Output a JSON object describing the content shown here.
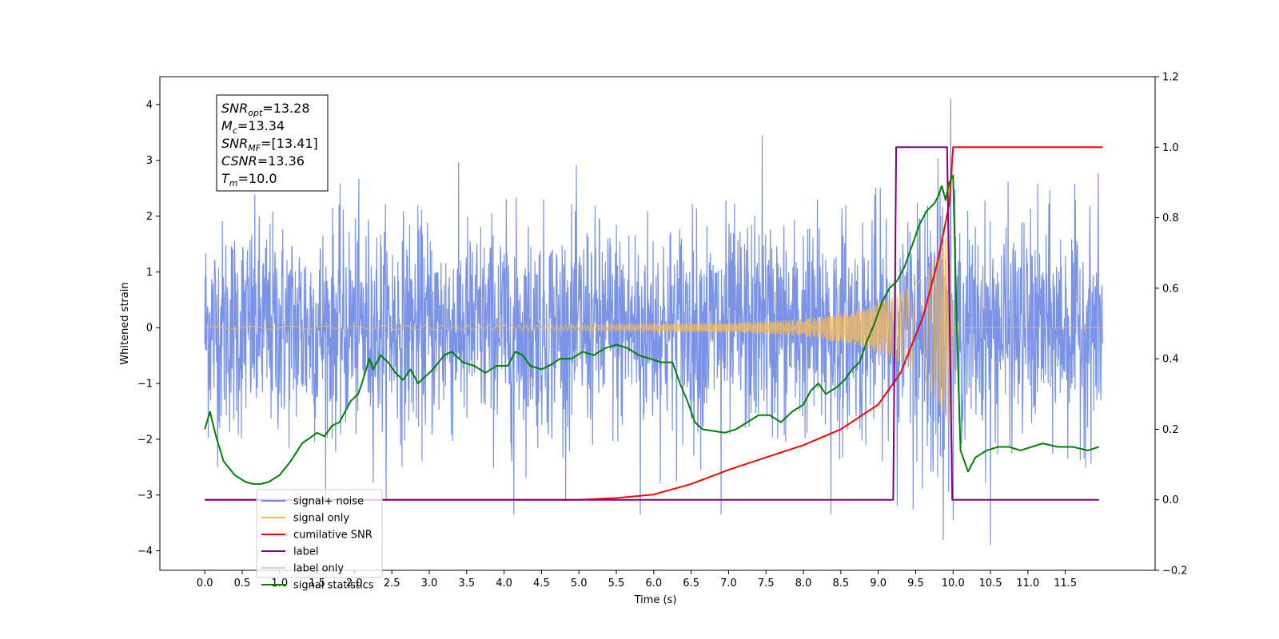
{
  "chart_data": {
    "type": "line",
    "xlabel": "Time (s)",
    "ylabel": "Whitened strain",
    "xlim": [
      -0.6,
      12.7
    ],
    "ylim": [
      -4.35,
      4.5
    ],
    "y2lim": [
      -0.2,
      1.2
    ],
    "x_ticks": [
      "0.0",
      "0.5",
      "1.0",
      "1.5",
      "2.0",
      "2.5",
      "3.0",
      "3.5",
      "4.0",
      "4.5",
      "5.0",
      "5.5",
      "6.0",
      "6.5",
      "7.0",
      "7.5",
      "8.0",
      "8.5",
      "9.0",
      "9.5",
      "10.0",
      "10.5",
      "11.0",
      "11.5"
    ],
    "y_ticks": [
      "4",
      "3",
      "2",
      "1",
      "0",
      "−1",
      "−2",
      "−3",
      "−4"
    ],
    "y2_ticks": [
      "1.2",
      "1.0",
      "0.8",
      "0.6",
      "0.4",
      "0.2",
      "0.0",
      "−0.2"
    ],
    "info_box": [
      {
        "label": "SNR",
        "sub": "opt",
        "value": "=13.28"
      },
      {
        "label": "M",
        "sub": "c",
        "value": "=13.34"
      },
      {
        "label": "SNR",
        "sub": "MF",
        "value": "=[13.41]"
      },
      {
        "label": "CSNR",
        "sub": "",
        "value": "=13.36"
      },
      {
        "label": "T",
        "sub": "m",
        "value": "=10.0"
      }
    ],
    "legend": [
      {
        "name": "signal+ noise",
        "color": "#6b87e3"
      },
      {
        "name": "signal only",
        "color": "#f5b95a"
      },
      {
        "name": "cumilative SNR",
        "color": "#ff0000"
      },
      {
        "name": "label",
        "color": "#800080"
      },
      {
        "name": "label only",
        "color": "#d3d3d3"
      },
      {
        "name": "signal statistics",
        "color": "#008000"
      }
    ],
    "legend_placement": "lower left",
    "series": [
      {
        "name": "signal+ noise",
        "axis": "left",
        "color": "#6b87e3",
        "noise_sigma": 0.95,
        "samples": 2600,
        "x_range": [
          0.0,
          12.0
        ],
        "spikes": [
          {
            "x": 4.13,
            "y": -3.35
          },
          {
            "x": 5.82,
            "y": -3.35
          },
          {
            "x": 6.9,
            "y": -3.35
          },
          {
            "x": 8.37,
            "y": -3.35
          },
          {
            "x": 9.97,
            "y": 4.1
          },
          {
            "x": 10.0,
            "y": -3.45
          },
          {
            "x": 10.5,
            "y": -3.9
          },
          {
            "x": 7.45,
            "y": 3.45
          }
        ]
      },
      {
        "name": "signal only",
        "axis": "left",
        "color": "#f5b95a",
        "envelope": [
          [
            0.0,
            0.02
          ],
          [
            5.0,
            0.05
          ],
          [
            7.0,
            0.08
          ],
          [
            8.0,
            0.15
          ],
          [
            8.7,
            0.3
          ],
          [
            9.2,
            0.55
          ],
          [
            9.6,
            0.9
          ],
          [
            9.95,
            1.75
          ],
          [
            10.0,
            0.0
          ],
          [
            12.0,
            0.0
          ]
        ]
      },
      {
        "name": "cumilative SNR",
        "axis": "right",
        "color": "#ff0000",
        "x": [
          0.0,
          5.0,
          5.5,
          6.0,
          6.5,
          7.0,
          7.5,
          8.0,
          8.5,
          9.0,
          9.3,
          9.6,
          9.8,
          9.95,
          10.0,
          12.0
        ],
        "y": [
          0.0,
          0.0,
          0.005,
          0.015,
          0.045,
          0.085,
          0.12,
          0.155,
          0.2,
          0.27,
          0.36,
          0.52,
          0.68,
          0.84,
          1.0,
          1.0
        ]
      },
      {
        "name": "label",
        "axis": "right",
        "color": "#800080",
        "x": [
          0.0,
          9.2,
          9.24,
          9.92,
          9.99,
          11.95
        ],
        "y": [
          0.0,
          0.0,
          1.0,
          1.0,
          0.0,
          0.0
        ]
      },
      {
        "name": "signal statistics",
        "axis": "right",
        "color": "#008000",
        "x": [
          0.0,
          0.07,
          0.15,
          0.25,
          0.4,
          0.55,
          0.65,
          0.75,
          0.85,
          1.0,
          1.15,
          1.3,
          1.5,
          1.6,
          1.7,
          1.8,
          1.95,
          2.05,
          2.1,
          2.2,
          2.25,
          2.35,
          2.45,
          2.55,
          2.65,
          2.75,
          2.85,
          2.95,
          3.05,
          3.2,
          3.3,
          3.45,
          3.6,
          3.75,
          3.9,
          4.05,
          4.15,
          4.25,
          4.35,
          4.5,
          4.6,
          4.75,
          4.9,
          5.05,
          5.2,
          5.35,
          5.5,
          5.65,
          5.8,
          5.95,
          6.1,
          6.25,
          6.35,
          6.45,
          6.55,
          6.65,
          6.8,
          6.95,
          7.1,
          7.25,
          7.4,
          7.55,
          7.7,
          7.85,
          8.0,
          8.1,
          8.2,
          8.3,
          8.45,
          8.55,
          8.65,
          8.75,
          8.85,
          8.95,
          9.05,
          9.15,
          9.25,
          9.35,
          9.45,
          9.55,
          9.65,
          9.75,
          9.8,
          9.85,
          9.9,
          9.95,
          10.0,
          10.05,
          10.1,
          10.2,
          10.3,
          10.45,
          10.6,
          10.75,
          10.9,
          11.05,
          11.2,
          11.4,
          11.6,
          11.8,
          11.95
        ],
        "y": [
          0.2,
          0.25,
          0.18,
          0.11,
          0.07,
          0.05,
          0.045,
          0.045,
          0.05,
          0.07,
          0.11,
          0.16,
          0.19,
          0.18,
          0.21,
          0.22,
          0.28,
          0.3,
          0.33,
          0.4,
          0.37,
          0.41,
          0.39,
          0.36,
          0.34,
          0.37,
          0.33,
          0.35,
          0.37,
          0.41,
          0.42,
          0.39,
          0.38,
          0.36,
          0.38,
          0.38,
          0.42,
          0.41,
          0.38,
          0.37,
          0.38,
          0.4,
          0.4,
          0.42,
          0.41,
          0.43,
          0.44,
          0.43,
          0.41,
          0.4,
          0.39,
          0.39,
          0.33,
          0.28,
          0.22,
          0.2,
          0.195,
          0.19,
          0.2,
          0.22,
          0.24,
          0.24,
          0.22,
          0.25,
          0.27,
          0.31,
          0.33,
          0.3,
          0.32,
          0.34,
          0.37,
          0.39,
          0.45,
          0.5,
          0.56,
          0.6,
          0.62,
          0.66,
          0.72,
          0.78,
          0.82,
          0.84,
          0.86,
          0.89,
          0.85,
          0.9,
          0.92,
          0.5,
          0.14,
          0.08,
          0.12,
          0.14,
          0.15,
          0.15,
          0.14,
          0.15,
          0.16,
          0.15,
          0.15,
          0.14,
          0.15
        ]
      }
    ]
  }
}
